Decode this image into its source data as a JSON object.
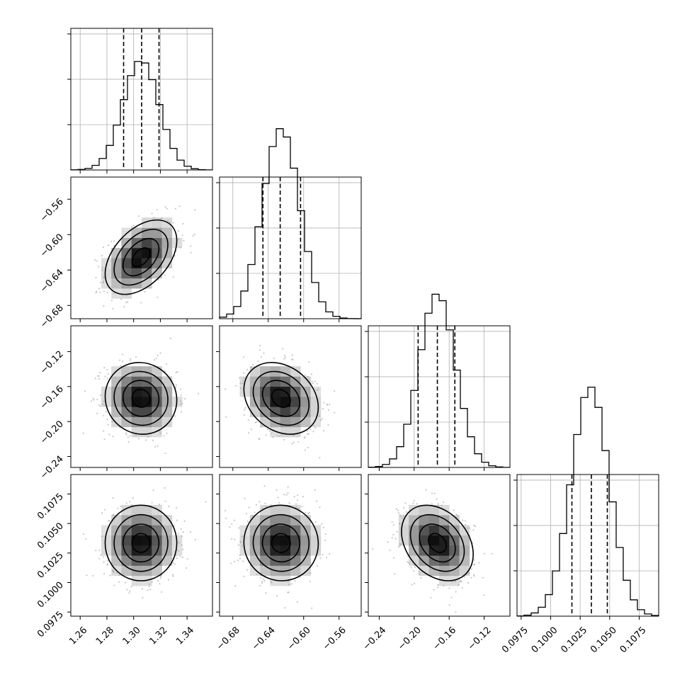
{
  "chart_data": {
    "type": "corner",
    "parameters": [
      {
        "ticks": [
          1.26,
          1.28,
          1.3,
          1.32,
          1.34
        ],
        "tick_labels": [
          "1.26",
          "1.28",
          "1.30",
          "1.32",
          "1.34"
        ],
        "range": [
          1.253,
          1.359
        ],
        "mean": 1.3055,
        "sd": 0.0134,
        "quantiles": [
          1.2925,
          1.306,
          1.319
        ]
      },
      {
        "ticks": [
          -0.68,
          -0.64,
          -0.6,
          -0.56
        ],
        "tick_labels": [
          "−0.68",
          "−0.64",
          "−0.60",
          "−0.56"
        ],
        "range": [
          -0.695,
          -0.535
        ],
        "mean": -0.6255,
        "sd": 0.021,
        "quantiles": [
          -0.646,
          -0.6265,
          -0.6035
        ]
      },
      {
        "ticks": [
          -0.24,
          -0.2,
          -0.16,
          -0.12
        ],
        "tick_labels": [
          "−0.24",
          "−0.20",
          "−0.16",
          "−0.12"
        ],
        "range": [
          -0.2525,
          -0.0905
        ],
        "mean": -0.1735,
        "sd": 0.0205,
        "quantiles": [
          -0.1955,
          -0.1735,
          -0.1535
        ]
      },
      {
        "ticks": [
          0.0975,
          0.1,
          0.1025,
          0.105,
          0.1075
        ],
        "tick_labels": [
          "0.0975",
          "0.1000",
          "0.1025",
          "0.1050",
          "0.1075"
        ],
        "range": [
          0.09715,
          0.10915
        ],
        "mean": 0.10335,
        "sd": 0.0016,
        "quantiles": [
          0.1018,
          0.10345,
          0.1048
        ]
      }
    ],
    "diagonal_hist_bins": 20,
    "diagonal_hist_max_fraction": [
      0.187,
      0.104,
      0.118,
      0.085
    ],
    "correlations": [
      [
        1,
        0.45,
        -0.05,
        0.0
      ],
      [
        0.45,
        1,
        -0.25,
        -0.02
      ],
      [
        -0.05,
        -0.25,
        1,
        -0.3
      ],
      [
        0.0,
        -0.02,
        -0.3,
        1
      ]
    ],
    "contour_levels_sigma": [
      0.5,
      1.0,
      1.5,
      2.0
    ],
    "grid": true,
    "legend": "none"
  }
}
